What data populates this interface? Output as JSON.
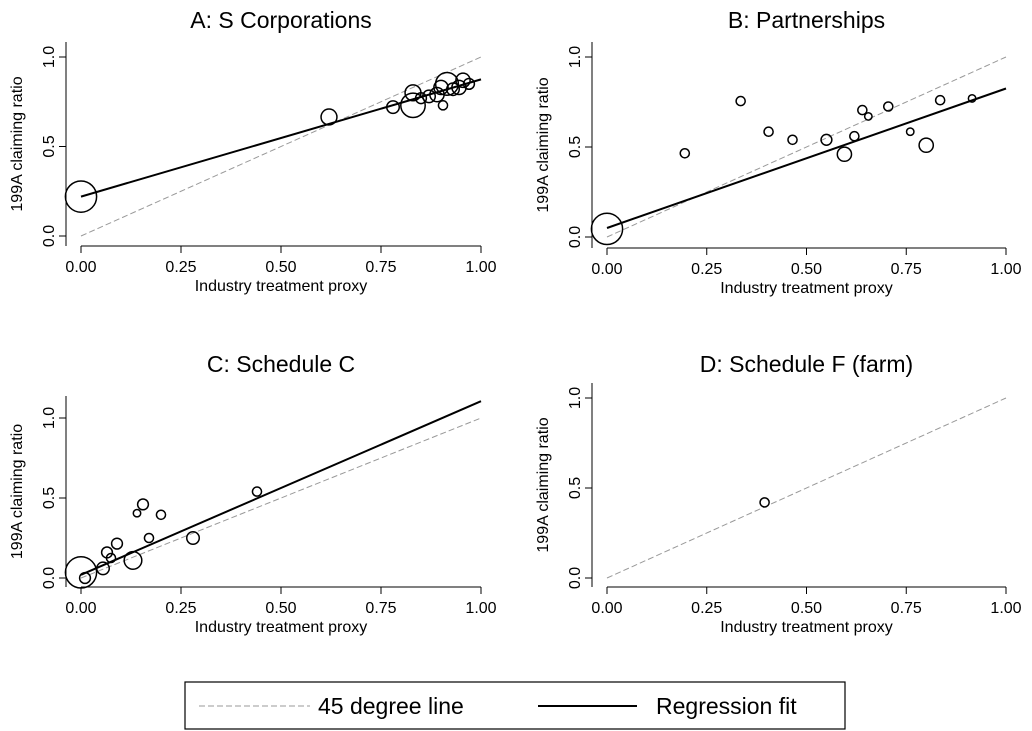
{
  "figure": {
    "legend": {
      "position": "bottom-center",
      "entries": [
        {
          "label": "45 degree line",
          "style": "dashed",
          "color": "#999999"
        },
        {
          "label": "Regression fit",
          "style": "solid",
          "color": "#000000"
        }
      ]
    }
  },
  "chart_data": [
    {
      "type": "scatter",
      "title": "A: S Corporations",
      "xlabel": "Industry treatment proxy",
      "ylabel": "199A claiming ratio",
      "xlim": [
        0,
        1
      ],
      "ylim": [
        0,
        1
      ],
      "xticks": [
        "0.00",
        "0.25",
        "0.50",
        "0.75",
        "1.00"
      ],
      "yticks": [
        "0.0",
        "0.5",
        "1.0"
      ],
      "reference_line": {
        "label": "45 degree line",
        "from": [
          0,
          0
        ],
        "to": [
          1,
          1
        ]
      },
      "regression_fit": {
        "label": "Regression fit",
        "from": [
          0,
          0.22
        ],
        "to": [
          1,
          0.875
        ]
      },
      "points": [
        {
          "x": 0.0,
          "y": 0.22,
          "weight": 16
        },
        {
          "x": 0.62,
          "y": 0.665,
          "weight": 7
        },
        {
          "x": 0.78,
          "y": 0.72,
          "weight": 5
        },
        {
          "x": 0.83,
          "y": 0.73,
          "weight": 12
        },
        {
          "x": 0.83,
          "y": 0.8,
          "weight": 7
        },
        {
          "x": 0.85,
          "y": 0.77,
          "weight": 4
        },
        {
          "x": 0.87,
          "y": 0.78,
          "weight": 5
        },
        {
          "x": 0.89,
          "y": 0.79,
          "weight": 6
        },
        {
          "x": 0.9,
          "y": 0.83,
          "weight": 6
        },
        {
          "x": 0.905,
          "y": 0.73,
          "weight": 3
        },
        {
          "x": 0.915,
          "y": 0.85,
          "weight": 11
        },
        {
          "x": 0.93,
          "y": 0.82,
          "weight": 5
        },
        {
          "x": 0.945,
          "y": 0.83,
          "weight": 6
        },
        {
          "x": 0.955,
          "y": 0.87,
          "weight": 6
        },
        {
          "x": 0.97,
          "y": 0.85,
          "weight": 4
        }
      ]
    },
    {
      "type": "scatter",
      "title": "B: Partnerships",
      "xlabel": "Industry treatment proxy",
      "ylabel": "199A claiming ratio",
      "xlim": [
        0,
        1
      ],
      "ylim": [
        0,
        1
      ],
      "xticks": [
        "0.00",
        "0.25",
        "0.50",
        "0.75",
        "1.00"
      ],
      "yticks": [
        "0.0",
        "0.5",
        "1.0"
      ],
      "reference_line": {
        "label": "45 degree line",
        "from": [
          0,
          0
        ],
        "to": [
          1,
          1
        ]
      },
      "regression_fit": {
        "label": "Regression fit",
        "from": [
          0,
          0.05
        ],
        "to": [
          1,
          0.825
        ]
      },
      "points": [
        {
          "x": 0.0,
          "y": 0.045,
          "weight": 16
        },
        {
          "x": 0.195,
          "y": 0.465,
          "weight": 3
        },
        {
          "x": 0.335,
          "y": 0.755,
          "weight": 3
        },
        {
          "x": 0.405,
          "y": 0.585,
          "weight": 3
        },
        {
          "x": 0.465,
          "y": 0.54,
          "weight": 3
        },
        {
          "x": 0.55,
          "y": 0.54,
          "weight": 4
        },
        {
          "x": 0.595,
          "y": 0.46,
          "weight": 6
        },
        {
          "x": 0.62,
          "y": 0.56,
          "weight": 3
        },
        {
          "x": 0.64,
          "y": 0.705,
          "weight": 3
        },
        {
          "x": 0.655,
          "y": 0.67,
          "weight": 2
        },
        {
          "x": 0.705,
          "y": 0.725,
          "weight": 3
        },
        {
          "x": 0.76,
          "y": 0.585,
          "weight": 2
        },
        {
          "x": 0.8,
          "y": 0.51,
          "weight": 6
        },
        {
          "x": 0.835,
          "y": 0.76,
          "weight": 3
        },
        {
          "x": 0.915,
          "y": 0.77,
          "weight": 2
        }
      ]
    },
    {
      "type": "scatter",
      "title": "C: Schedule C",
      "xlabel": "Industry treatment proxy",
      "ylabel": "199A claiming ratio",
      "xlim": [
        0,
        1
      ],
      "ylim": [
        0,
        1.12
      ],
      "xticks": [
        "0.00",
        "0.25",
        "0.50",
        "0.75",
        "1.00"
      ],
      "yticks": [
        "0.0",
        "0.5",
        "1.0"
      ],
      "reference_line": {
        "label": "45 degree line",
        "from": [
          0,
          0
        ],
        "to": [
          1,
          1
        ]
      },
      "regression_fit": {
        "label": "Regression fit",
        "from": [
          0,
          0.02
        ],
        "to": [
          1,
          1.105
        ]
      },
      "points": [
        {
          "x": 0.0,
          "y": 0.035,
          "weight": 16
        },
        {
          "x": 0.01,
          "y": 0.0,
          "weight": 4
        },
        {
          "x": 0.055,
          "y": 0.06,
          "weight": 5
        },
        {
          "x": 0.065,
          "y": 0.16,
          "weight": 4
        },
        {
          "x": 0.075,
          "y": 0.125,
          "weight": 3
        },
        {
          "x": 0.09,
          "y": 0.215,
          "weight": 4
        },
        {
          "x": 0.13,
          "y": 0.11,
          "weight": 8
        },
        {
          "x": 0.14,
          "y": 0.405,
          "weight": 2
        },
        {
          "x": 0.155,
          "y": 0.46,
          "weight": 4
        },
        {
          "x": 0.17,
          "y": 0.25,
          "weight": 3
        },
        {
          "x": 0.2,
          "y": 0.395,
          "weight": 3
        },
        {
          "x": 0.28,
          "y": 0.25,
          "weight": 5
        },
        {
          "x": 0.44,
          "y": 0.54,
          "weight": 3
        }
      ]
    },
    {
      "type": "scatter",
      "title": "D: Schedule F (farm)",
      "xlabel": "Industry treatment proxy",
      "ylabel": "199A claiming ratio",
      "xlim": [
        0,
        1
      ],
      "ylim": [
        0,
        1
      ],
      "xticks": [
        "0.00",
        "0.25",
        "0.50",
        "0.75",
        "1.00"
      ],
      "yticks": [
        "0.0",
        "0.5",
        "1.0"
      ],
      "reference_line": {
        "label": "45 degree line",
        "from": [
          0,
          0
        ],
        "to": [
          1,
          1
        ]
      },
      "regression_fit": null,
      "points": [
        {
          "x": 0.395,
          "y": 0.42,
          "weight": 3
        }
      ]
    }
  ]
}
